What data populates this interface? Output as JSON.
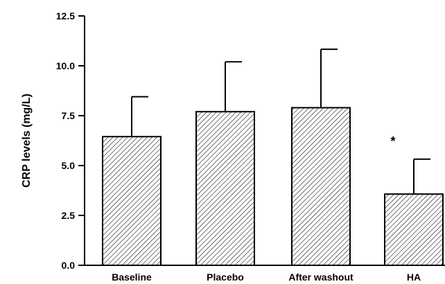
{
  "chart_data": {
    "type": "bar",
    "categories": [
      "Baseline",
      "Placebo",
      "After washout",
      "HA"
    ],
    "values": [
      6.45,
      7.7,
      7.9,
      3.57
    ],
    "error_upper": [
      8.45,
      10.2,
      10.83,
      5.32
    ],
    "annotations": [
      "",
      "",
      "",
      "*"
    ],
    "title": "",
    "xlabel": "",
    "ylabel": "CRP levels (mg/L)",
    "ylim": [
      0,
      12.5
    ],
    "yticks": [
      "0.0",
      "2.5",
      "5.0",
      "7.5",
      "10.0",
      "12.5"
    ],
    "ytick_values": [
      0,
      2.5,
      5,
      7.5,
      10,
      12.5
    ],
    "bar_fill": "diagonal-hatch",
    "grid": false,
    "legend": "none",
    "colors": {
      "axis": "#000000",
      "bar_edge": "#000000",
      "hatch": "#000000",
      "background": "#ffffff"
    }
  }
}
